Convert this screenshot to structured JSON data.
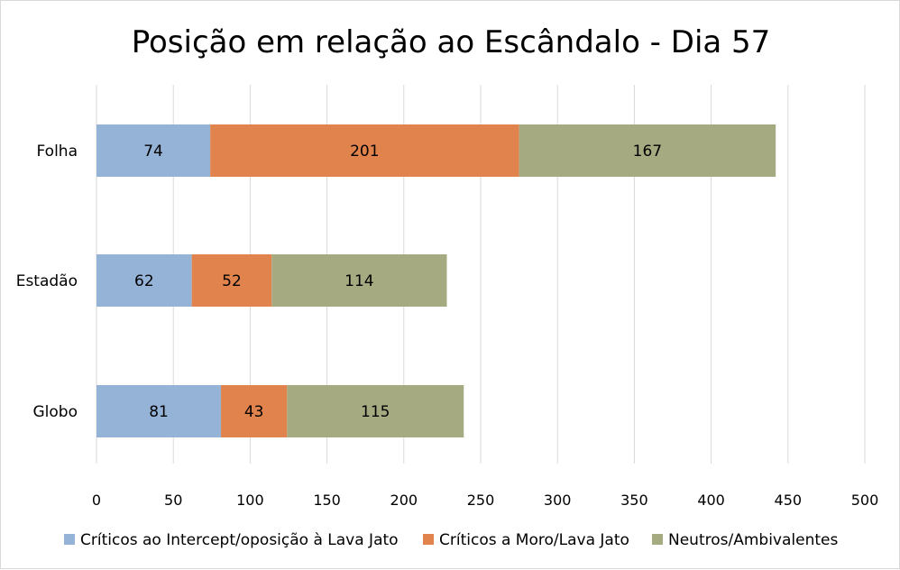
{
  "chart_data": {
    "type": "bar",
    "orientation": "horizontal",
    "stacked": true,
    "title": "Posição em relação ao Escândalo - Dia 57",
    "categories": [
      "Folha",
      "Estadão",
      "Globo"
    ],
    "xlim": [
      0,
      500
    ],
    "x_ticks": [
      "0",
      "50",
      "100",
      "150",
      "200",
      "250",
      "300",
      "350",
      "400",
      "450",
      "500"
    ],
    "grid": true,
    "legend_position": "bottom",
    "series": [
      {
        "name": "Críticos ao Intercept/oposição à Lava Jato",
        "color": "#95b3d7",
        "values": [
          74,
          62,
          81
        ]
      },
      {
        "name": "Críticos a Moro/Lava Jato",
        "color": "#e0834d",
        "values": [
          201,
          52,
          43
        ]
      },
      {
        "name": "Neutros/Ambivalentes",
        "color": "#a5aa81",
        "values": [
          167,
          114,
          115
        ]
      }
    ]
  }
}
